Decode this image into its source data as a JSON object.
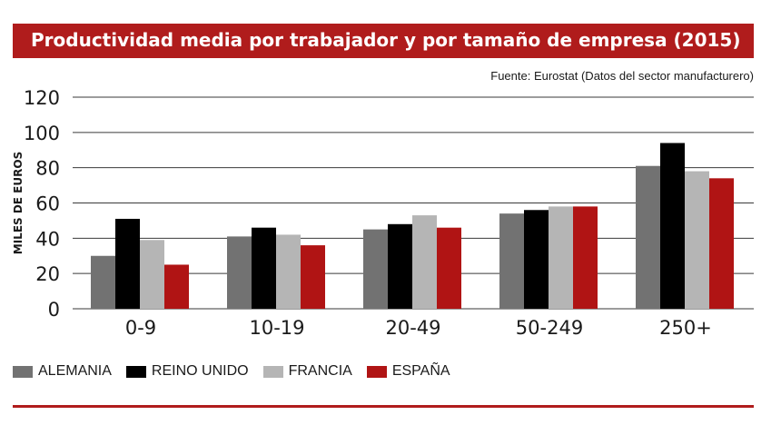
{
  "header": {
    "title": "Productividad media por trabajador y por tamaño de empresa (2015)",
    "source": "Fuente: Eurostat (Datos del sector manufacturero)"
  },
  "colors": {
    "accent": "#b01c1c",
    "series": [
      "#727272",
      "#000000",
      "#b5b5b5",
      "#b01414"
    ]
  },
  "chart_data": {
    "type": "bar",
    "title": "Productividad media por trabajador y por tamaño de empresa (2015)",
    "ylabel": "MILES DE EUROS",
    "xlabel": "",
    "ylim": [
      0,
      120
    ],
    "yticks": [
      "0",
      "20",
      "40",
      "60",
      "80",
      "100",
      "120"
    ],
    "grid": true,
    "legend_position": "bottom",
    "categories": [
      "0-9",
      "10-19",
      "20-49",
      "50-249",
      "250+"
    ],
    "series": [
      {
        "name": "ALEMANIA",
        "values": [
          30,
          41,
          45,
          54,
          81
        ]
      },
      {
        "name": "REINO UNIDO",
        "values": [
          51,
          46,
          48,
          56,
          94
        ]
      },
      {
        "name": "FRANCIA",
        "values": [
          39,
          42,
          53,
          58,
          78
        ]
      },
      {
        "name": "ESPAÑA",
        "values": [
          25,
          36,
          46,
          58,
          74
        ]
      }
    ]
  }
}
